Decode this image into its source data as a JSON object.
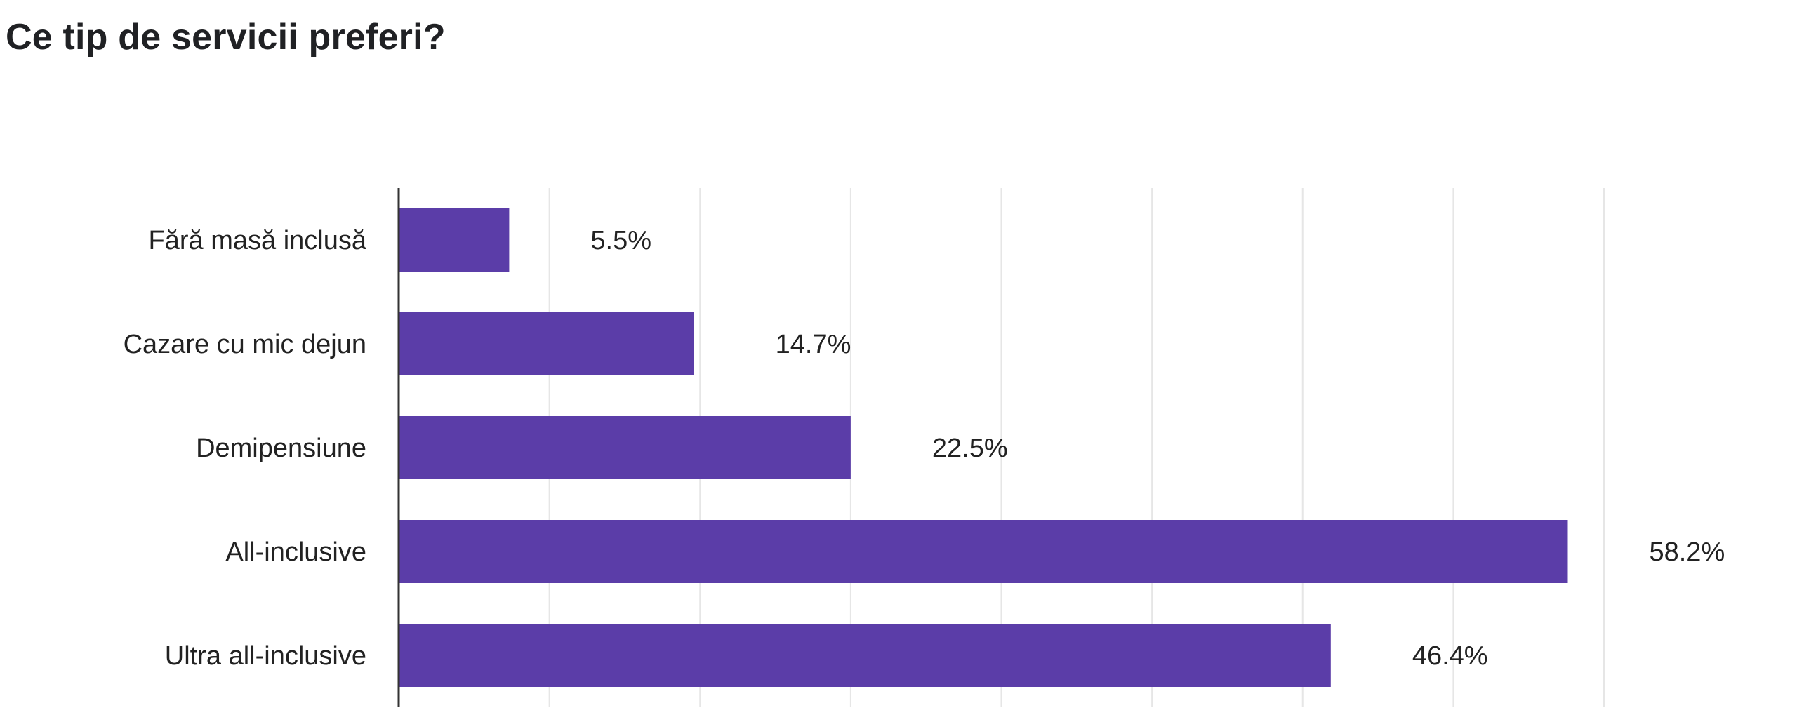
{
  "title": "Ce tip de servicii preferi?",
  "bar_color": "#5b3da8",
  "grid_color": "#e6e6e6",
  "axis_color": "#333333",
  "chart_data": {
    "type": "bar",
    "orientation": "horizontal",
    "title": "Ce tip de servicii preferi?",
    "categories": [
      "Fără masă inclusă",
      "Cazare cu mic dejun",
      "Demipensiune",
      "All-inclusive",
      "Ultra all-inclusive"
    ],
    "values": [
      5.5,
      14.7,
      22.5,
      58.2,
      46.4
    ],
    "value_labels": [
      "5.5%",
      "14.7%",
      "22.5%",
      "58.2%",
      "46.4%"
    ],
    "xlim": [
      0,
      60
    ],
    "xgrid_step": 7.5,
    "grid": true,
    "legend": "none"
  }
}
